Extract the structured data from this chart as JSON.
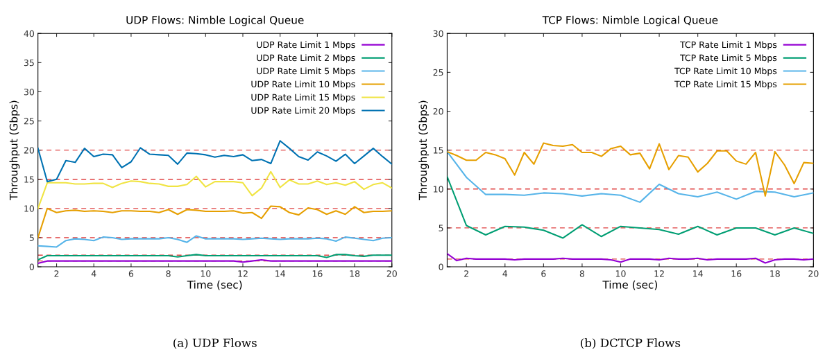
{
  "chart_data": [
    {
      "type": "line",
      "title": "UDP Flows: Nimble Logical Queue",
      "xlabel": "Time (sec)",
      "ylabel": "Throughput (Gbps)",
      "xlim": [
        1,
        20
      ],
      "xticks": [
        2,
        4,
        6,
        8,
        10,
        12,
        14,
        16,
        18,
        20
      ],
      "ylim": [
        0,
        40
      ],
      "yticks": [
        0,
        5,
        10,
        15,
        20,
        25,
        30,
        35,
        40
      ],
      "grid": false,
      "legend": "top right",
      "marker": "none",
      "line_style": "solid",
      "x": [
        1,
        1.5,
        2,
        2.5,
        3,
        3.5,
        4,
        4.5,
        5,
        5.5,
        6,
        6.5,
        7,
        7.5,
        8,
        8.5,
        9,
        9.5,
        10,
        10.5,
        11,
        11.5,
        12,
        12.5,
        13,
        13.5,
        14,
        14.5,
        15,
        15.5,
        16,
        16.5,
        17,
        17.5,
        18,
        18.5,
        19,
        19.5,
        20
      ],
      "series": [
        {
          "name": "UDP Rate Limit 1 Mbps",
          "color": "#9400d3",
          "values": [
            0.6,
            1,
            1,
            1,
            1,
            1,
            1,
            1,
            1,
            1,
            1,
            1,
            1,
            1,
            1,
            1,
            1,
            1,
            1,
            1,
            1,
            1,
            0.8,
            1,
            1.2,
            1,
            1,
            1,
            1,
            1,
            1,
            1,
            1,
            1,
            1,
            1,
            1,
            1,
            1
          ]
        },
        {
          "name": "UDP Rate Limit 2 Mbps",
          "color": "#009e73",
          "values": [
            1.2,
            1.9,
            1.9,
            1.9,
            1.9,
            1.9,
            1.9,
            1.9,
            1.9,
            1.9,
            1.9,
            1.9,
            1.9,
            1.9,
            1.9,
            1.7,
            1.9,
            2.1,
            1.9,
            1.9,
            1.9,
            1.9,
            1.9,
            1.9,
            1.9,
            1.9,
            1.9,
            1.9,
            1.9,
            1.9,
            1.9,
            1.6,
            2.1,
            2.1,
            1.9,
            1.8,
            2,
            2,
            2
          ]
        },
        {
          "name": "UDP Rate Limit 5 Mbps",
          "color": "#56b4e9",
          "values": [
            3.6,
            3.5,
            3.4,
            4.5,
            4.8,
            4.7,
            4.5,
            5.1,
            5,
            4.7,
            4.8,
            4.8,
            4.8,
            4.8,
            5,
            4.7,
            4.2,
            5.3,
            4.8,
            4.8,
            4.8,
            4.8,
            4.7,
            4.8,
            4.9,
            4.8,
            4.7,
            4.8,
            4.8,
            4.8,
            4.9,
            4.8,
            4.4,
            5.1,
            4.9,
            4.7,
            4.5,
            4.9,
            5
          ]
        },
        {
          "name": "UDP Rate Limit 10 Mbps",
          "color": "#e69f00",
          "values": [
            5,
            10,
            9.3,
            9.6,
            9.7,
            9.5,
            9.6,
            9.5,
            9.3,
            9.6,
            9.6,
            9.5,
            9.5,
            9.3,
            9.8,
            9,
            9.8,
            9.7,
            9.5,
            9.5,
            9.5,
            9.6,
            9.2,
            9.3,
            8.3,
            10.4,
            10.3,
            9.3,
            8.9,
            10.1,
            9.8,
            9,
            9.6,
            9,
            10.3,
            9.3,
            9.5,
            9.5,
            9.6
          ]
        },
        {
          "name": "UDP Rate Limit 15 Mbps",
          "color": "#f0e442",
          "values": [
            10,
            14.4,
            14.4,
            14.4,
            14.2,
            14.2,
            14.3,
            14.3,
            13.6,
            14.3,
            14.7,
            14.6,
            14.3,
            14.2,
            13.8,
            13.8,
            14.1,
            15.5,
            13.7,
            14.6,
            14.6,
            14.6,
            14.4,
            12.2,
            13.5,
            16.3,
            13.6,
            14.9,
            14.2,
            14.2,
            14.7,
            14.1,
            14.4,
            14,
            14.6,
            13.3,
            14.1,
            14.4,
            13.5
          ]
        },
        {
          "name": "UDP Rate Limit 20 Mbps",
          "color": "#0072b2",
          "values": [
            20.3,
            14.6,
            15,
            18.2,
            17.9,
            20.3,
            18.9,
            19.3,
            19.2,
            17,
            18,
            20.4,
            19.3,
            19.2,
            19.1,
            17.6,
            19.5,
            19.4,
            19.2,
            18.8,
            19.1,
            18.9,
            19.2,
            18.2,
            18.4,
            17.7,
            21.6,
            20.3,
            18.9,
            18.3,
            19.7,
            19,
            18.1,
            19.3,
            17.7,
            19,
            20.3,
            18.9,
            17.6
          ]
        }
      ],
      "ref_lines": [
        {
          "axis": "y",
          "value": 1,
          "color": "#e04040",
          "line_style": "dashed"
        },
        {
          "axis": "y",
          "value": 2,
          "color": "#e04040",
          "line_style": "dashed"
        },
        {
          "axis": "y",
          "value": 5,
          "color": "#e04040",
          "line_style": "dashed"
        },
        {
          "axis": "y",
          "value": 10,
          "color": "#e04040",
          "line_style": "dashed"
        },
        {
          "axis": "y",
          "value": 15,
          "color": "#e04040",
          "line_style": "dashed"
        },
        {
          "axis": "y",
          "value": 20,
          "color": "#e04040",
          "line_style": "dashed"
        }
      ],
      "annotations": [
        "(a) UDP Flows"
      ]
    },
    {
      "type": "line",
      "title": "TCP Flows: Nimble Logical Queue",
      "xlabel": "Time (sec)",
      "ylabel": "Throughput (Gbps)",
      "xlim": [
        1,
        20
      ],
      "xticks": [
        2,
        4,
        6,
        8,
        10,
        12,
        14,
        16,
        18,
        20
      ],
      "ylim": [
        0,
        30
      ],
      "yticks": [
        0,
        5,
        10,
        15,
        20,
        25,
        30
      ],
      "grid": false,
      "legend": "top right",
      "marker": "none",
      "line_style": "solid",
      "series": [
        {
          "name": "TCP Rate Limit 1 Mbps",
          "color": "#9400d3",
          "x": [
            1,
            1.5,
            2,
            2.5,
            3,
            3.5,
            4,
            4.5,
            5,
            5.5,
            6,
            6.5,
            7,
            7.5,
            8,
            8.5,
            9,
            9.5,
            10,
            10.5,
            11,
            11.5,
            12,
            12.5,
            13,
            13.5,
            14,
            14.5,
            15,
            15.5,
            16,
            16.5,
            17,
            17.5,
            18,
            18.5,
            19,
            19.5,
            20
          ],
          "values": [
            1.7,
            0.8,
            1.1,
            1,
            1,
            1,
            1,
            0.9,
            1,
            1,
            1,
            1,
            1.1,
            1,
            1,
            1,
            1,
            0.9,
            0.6,
            1,
            1,
            1,
            0.9,
            1.1,
            1,
            1,
            1.1,
            0.9,
            1,
            1,
            1,
            1,
            1.1,
            0.5,
            0.9,
            1,
            1,
            0.9,
            1
          ]
        },
        {
          "name": "TCP Rate Limit 5 Mbps",
          "color": "#009e73",
          "x": [
            1,
            2,
            3,
            4,
            5,
            6,
            7,
            8,
            9,
            10,
            11,
            12,
            13,
            14,
            15,
            16,
            17,
            18,
            19,
            20
          ],
          "values": [
            11.6,
            5.3,
            4.1,
            5.2,
            5.1,
            4.7,
            3.7,
            5.4,
            3.9,
            5.2,
            5,
            4.8,
            4.2,
            5.2,
            4.1,
            5,
            5,
            4.1,
            5,
            4.3
          ]
        },
        {
          "name": "TCP Rate Limit 10 Mbps",
          "color": "#56b4e9",
          "x": [
            1,
            2,
            3,
            4,
            5,
            6,
            7,
            8,
            9,
            10,
            11,
            12,
            13,
            14,
            15,
            16,
            17,
            18,
            19,
            20
          ],
          "values": [
            14.8,
            11.5,
            9.3,
            9.3,
            9.2,
            9.5,
            9.4,
            9.1,
            9.4,
            9.2,
            8.3,
            10.6,
            9.4,
            9,
            9.6,
            8.7,
            9.7,
            9.6,
            9,
            9.5
          ]
        },
        {
          "name": "TCP Rate Limit 15 Mbps",
          "color": "#e69f00",
          "x": [
            1,
            1.5,
            2,
            2.5,
            3,
            3.5,
            4,
            4.5,
            5,
            5.5,
            6,
            6.5,
            7,
            7.5,
            8,
            8.5,
            9,
            9.5,
            10,
            10.5,
            11,
            11.5,
            12,
            12.5,
            13,
            13.5,
            14,
            14.5,
            15,
            15.5,
            16,
            16.5,
            17,
            17.5,
            18,
            18.5,
            19,
            19.5,
            20
          ],
          "values": [
            14.8,
            14.3,
            13.7,
            13.7,
            14.7,
            14.4,
            13.9,
            11.8,
            14.7,
            13.2,
            15.9,
            15.6,
            15.5,
            15.7,
            14.7,
            14.7,
            14.2,
            15.2,
            15.5,
            14.4,
            14.6,
            12.6,
            15.8,
            12.5,
            14.3,
            14.1,
            12.2,
            13.3,
            14.9,
            14.9,
            13.6,
            13.2,
            14.7,
            9.1,
            14.8,
            13.1,
            10.7,
            13.4,
            13.3
          ]
        }
      ],
      "ref_lines": [
        {
          "axis": "y",
          "value": 1,
          "color": "#e04040",
          "line_style": "dashed"
        },
        {
          "axis": "y",
          "value": 5,
          "color": "#e04040",
          "line_style": "dashed"
        },
        {
          "axis": "y",
          "value": 10,
          "color": "#e04040",
          "line_style": "dashed"
        },
        {
          "axis": "y",
          "value": 15,
          "color": "#e04040",
          "line_style": "dashed"
        }
      ],
      "annotations": [
        "(b) DCTCP Flows"
      ]
    }
  ]
}
